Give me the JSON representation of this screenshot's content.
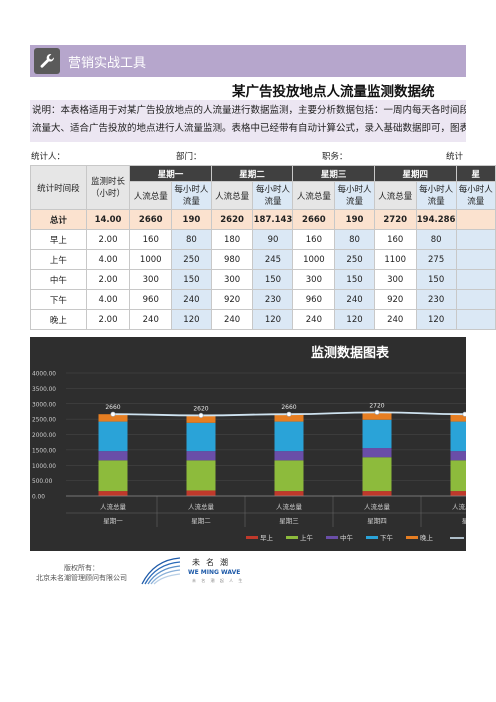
{
  "header": {
    "title": "营销实战工具",
    "icon": "wrench-icon"
  },
  "doc": {
    "title": "某广告投放地点人流量监测数据统",
    "desc_line1": "说明：本表格适用于对某广告投放地点的人流量进行数据监测，主要分析数据包括：一周内每天各时间段的",
    "desc_line2": "流量大、适合广告投放的地点进行人流量监测。表格中已经带有自动计算公式，录入基础数据即可，图表"
  },
  "meta": {
    "stat_person": "统计人：",
    "department": "部门：",
    "position": "职务：",
    "stat_time": "统计"
  },
  "table": {
    "col_period": "统计时间段",
    "col_duration": "监测时长（小时）",
    "days": [
      "星期一",
      "星期二",
      "星期三",
      "星期四",
      "星"
    ],
    "sub_total": "人流总量",
    "sub_hourly": "每小时人流量",
    "rows": [
      {
        "label": "总计",
        "duration": "14.00",
        "cells": [
          "2660",
          "190",
          "2620",
          "187.143",
          "2660",
          "190",
          "2720",
          "194.286"
        ]
      },
      {
        "label": "早上",
        "duration": "2.00",
        "cells": [
          "160",
          "80",
          "180",
          "90",
          "160",
          "80",
          "160",
          "80"
        ]
      },
      {
        "label": "上午",
        "duration": "4.00",
        "cells": [
          "1000",
          "250",
          "980",
          "245",
          "1000",
          "250",
          "1100",
          "275"
        ]
      },
      {
        "label": "中午",
        "duration": "2.00",
        "cells": [
          "300",
          "150",
          "300",
          "150",
          "300",
          "150",
          "300",
          "150"
        ]
      },
      {
        "label": "下午",
        "duration": "4.00",
        "cells": [
          "960",
          "240",
          "920",
          "230",
          "960",
          "240",
          "920",
          "230"
        ]
      },
      {
        "label": "晚上",
        "duration": "2.00",
        "cells": [
          "240",
          "120",
          "240",
          "120",
          "240",
          "120",
          "240",
          "120"
        ]
      }
    ]
  },
  "chart_data": {
    "type": "bar",
    "title": "监测数据图表",
    "categories": [
      "星期一",
      "星期二",
      "星期三",
      "星期四",
      "星"
    ],
    "category_sublabel": "人流总量",
    "ylim": [
      0,
      4000
    ],
    "yticks": [
      "0.00",
      "500.00",
      "1000.00",
      "1500.00",
      "2000.00",
      "2500.00",
      "3000.00",
      "3500.00",
      "4000.00"
    ],
    "series": [
      {
        "name": "早上",
        "values": [
          160,
          180,
          160,
          160,
          160
        ],
        "color": "#c0392b"
      },
      {
        "name": "上午",
        "values": [
          1000,
          980,
          1000,
          1100,
          1000
        ],
        "color": "#8dbb3c"
      },
      {
        "name": "中午",
        "values": [
          300,
          300,
          300,
          300,
          300
        ],
        "color": "#6a4ea8"
      },
      {
        "name": "下午",
        "values": [
          960,
          920,
          960,
          920,
          960
        ],
        "color": "#2aa3d8"
      },
      {
        "name": "晚上",
        "values": [
          240,
          240,
          240,
          240,
          240
        ],
        "color": "#e67e22"
      }
    ],
    "line": {
      "values": [
        2660,
        2620,
        2660,
        2720,
        2660
      ],
      "labels": [
        "2660",
        "2620",
        "2660",
        "2720",
        ""
      ],
      "color": "#cfe3f0"
    },
    "grid": true,
    "legend": "bottom",
    "stacked": true
  },
  "footer": {
    "copyright_line1": "版权所有：",
    "copyright_line2": "北京未名潮管理顾问有限公司"
  },
  "logo": {
    "cn": "未名潮",
    "en": "WE MING WAVE",
    "sub": "未 名 潮 起 人 生"
  }
}
